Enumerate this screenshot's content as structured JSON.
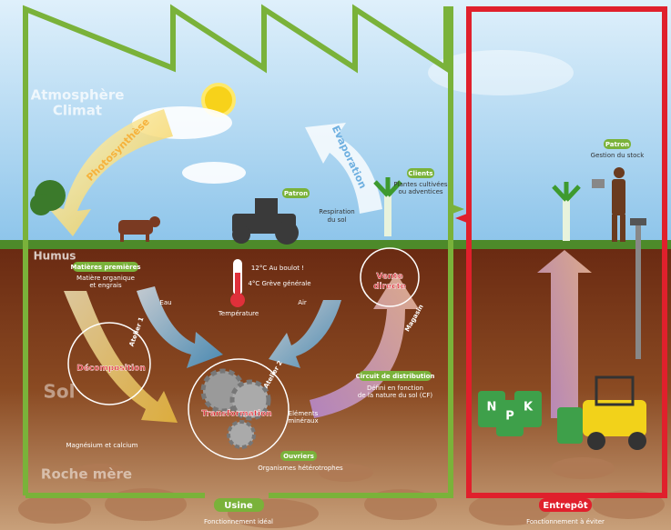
{
  "atmosphere": {
    "lines": [
      "Atmosphère",
      "Climat"
    ]
  },
  "photosynthesis": "Photosynthèse",
  "evaporation": "Evaporation",
  "boss": {
    "label": "Patron"
  },
  "soil_respiration": {
    "lines": [
      "Respiration",
      "du sol"
    ]
  },
  "clients": {
    "label": "Clients",
    "lines": [
      "Plantes cultivées",
      "ou adventices"
    ]
  },
  "humus": "Humus",
  "raw_materials": {
    "label": "Matières premières",
    "lines": [
      "Matière organique",
      "et engrais"
    ]
  },
  "water": "Eau",
  "temperature": {
    "hot": "12°C Au boulot !",
    "cold": "4°C Grève générale",
    "label": "Température"
  },
  "air": "Air",
  "direct_sale": {
    "lines": [
      "Vente",
      "directe"
    ]
  },
  "shop": "Magasin",
  "workshop_1": {
    "label": "Atelier 1",
    "name": "Décomposition"
  },
  "workshop_2": {
    "label": "Atelier 2",
    "name": "Transformation"
  },
  "soil": "Sol",
  "minerals": {
    "lines": [
      "Eléments",
      "minéraux"
    ]
  },
  "distribution": {
    "label": "Circuit de distribution",
    "lines": [
      "Défini en fonction",
      "de la nature du sol (CF)"
    ]
  },
  "magnesium": "Magnésium et calcium",
  "workers": {
    "label": "Ouvriers",
    "text": "Organismes hétérotrophes"
  },
  "bedrock": "Roche mère",
  "factory": {
    "label": "Usine",
    "text": "Fonctionnement idéal"
  },
  "warehouse": {
    "boss": "Patron",
    "stock": "Gestion du stock",
    "npk": [
      "N",
      "P",
      "K"
    ],
    "label": "Entrepôt",
    "text": "Fonctionnement à éviter"
  }
}
